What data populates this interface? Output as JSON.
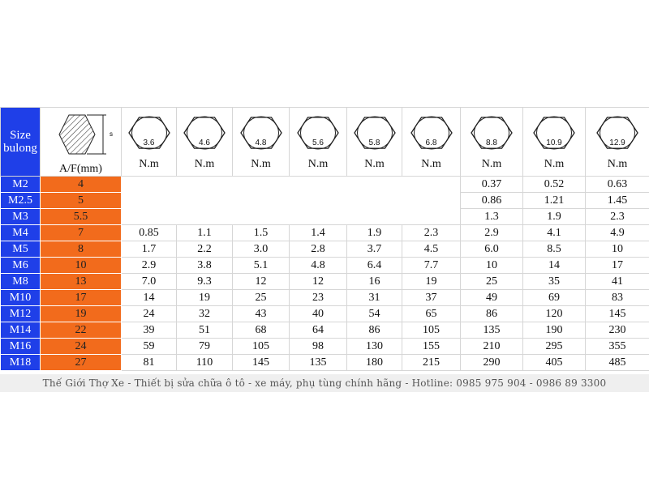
{
  "header": {
    "size_label": "Size bulong",
    "af_label": "A/F(mm)",
    "grades": [
      "3.6",
      "4.6",
      "4.8",
      "5.6",
      "5.8",
      "6.8",
      "8.8",
      "10.9",
      "12.9"
    ],
    "unit": "N.m"
  },
  "rows": [
    {
      "size": "M2",
      "af": "4",
      "torque": [
        null,
        null,
        null,
        null,
        null,
        null,
        "0.37",
        "0.52",
        "0.63"
      ]
    },
    {
      "size": "M2.5",
      "af": "5",
      "torque": [
        null,
        null,
        null,
        null,
        null,
        null,
        "0.86",
        "1.21",
        "1.45"
      ]
    },
    {
      "size": "M3",
      "af": "5.5",
      "torque": [
        null,
        null,
        null,
        null,
        null,
        null,
        "1.3",
        "1.9",
        "2.3"
      ]
    },
    {
      "size": "M4",
      "af": "7",
      "torque": [
        "0.85",
        "1.1",
        "1.5",
        "1.4",
        "1.9",
        "2.3",
        "2.9",
        "4.1",
        "4.9"
      ]
    },
    {
      "size": "M5",
      "af": "8",
      "torque": [
        "1.7",
        "2.2",
        "3.0",
        "2.8",
        "3.7",
        "4.5",
        "6.0",
        "8.5",
        "10"
      ]
    },
    {
      "size": "M6",
      "af": "10",
      "torque": [
        "2.9",
        "3.8",
        "5.1",
        "4.8",
        "6.4",
        "7.7",
        "10",
        "14",
        "17"
      ]
    },
    {
      "size": "M8",
      "af": "13",
      "torque": [
        "7.0",
        "9.3",
        "12",
        "12",
        "16",
        "19",
        "25",
        "35",
        "41"
      ]
    },
    {
      "size": "M10",
      "af": "17",
      "torque": [
        "14",
        "19",
        "25",
        "23",
        "31",
        "37",
        "49",
        "69",
        "83"
      ]
    },
    {
      "size": "M12",
      "af": "19",
      "torque": [
        "24",
        "32",
        "43",
        "40",
        "54",
        "65",
        "86",
        "120",
        "145"
      ]
    },
    {
      "size": "M14",
      "af": "22",
      "torque": [
        "39",
        "51",
        "68",
        "64",
        "86",
        "105",
        "135",
        "190",
        "230"
      ]
    },
    {
      "size": "M16",
      "af": "24",
      "torque": [
        "59",
        "79",
        "105",
        "98",
        "130",
        "155",
        "210",
        "295",
        "355"
      ]
    },
    {
      "size": "M18",
      "af": "27",
      "torque": [
        "81",
        "110",
        "145",
        "135",
        "180",
        "215",
        "290",
        "405",
        "485"
      ]
    }
  ],
  "footer": "Thế Giới Thợ Xe - Thiết bị sửa chữa ô tô - xe máy, phụ tùng chính hãng - Hotline: 0985 975 904 - 0986 89 3300"
}
